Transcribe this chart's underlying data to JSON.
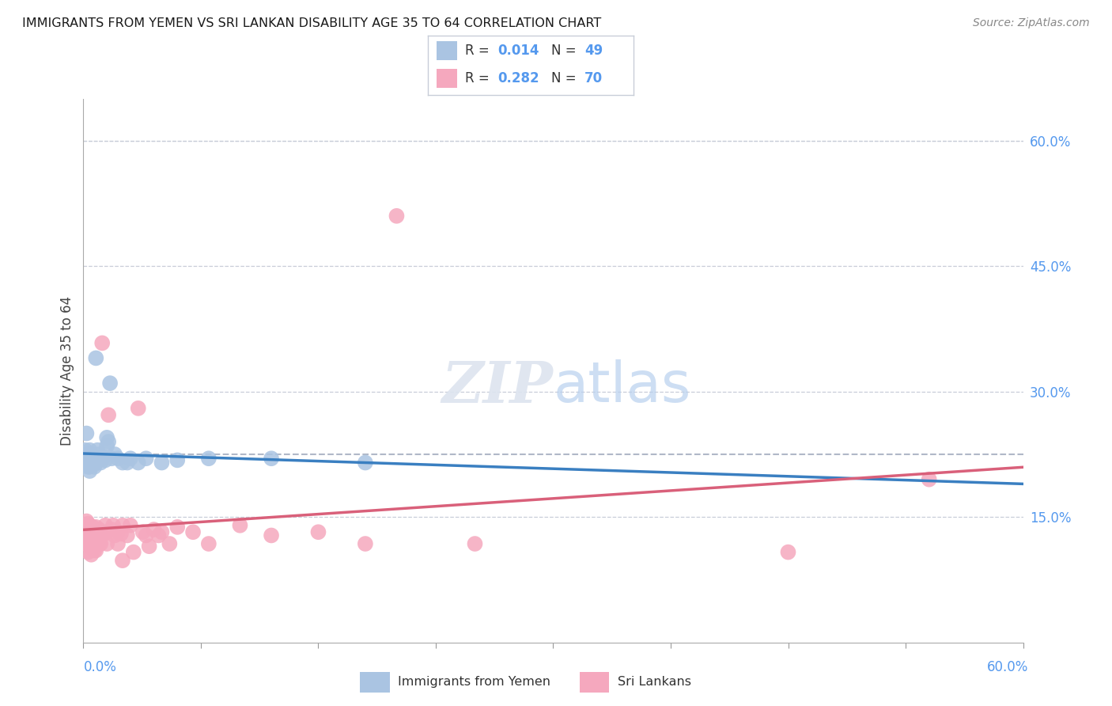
{
  "title": "IMMIGRANTS FROM YEMEN VS SRI LANKAN DISABILITY AGE 35 TO 64 CORRELATION CHART",
  "source": "Source: ZipAtlas.com",
  "ylabel": "Disability Age 35 to 64",
  "right_yticks": [
    0.15,
    0.3,
    0.45,
    0.6
  ],
  "right_yticklabels": [
    "15.0%",
    "30.0%",
    "45.0%",
    "60.0%"
  ],
  "xlim": [
    0.0,
    0.6
  ],
  "ylim": [
    0.0,
    0.65
  ],
  "yemen_R": 0.014,
  "yemen_N": 49,
  "srilanka_R": 0.282,
  "srilanka_N": 70,
  "yemen_color": "#aac4e2",
  "srilanka_color": "#f5a8be",
  "yemen_line_color": "#3a7fc1",
  "srilanka_line_color": "#d9607a",
  "dashed_line_color": "#b0b8c8",
  "grid_color": "#c8cdd8",
  "title_color": "#1a1a1a",
  "right_axis_color": "#5599ee",
  "background_color": "#ffffff",
  "legend_border_color": "#c8cdd8",
  "yemen_scatter_x": [
    0.001,
    0.001,
    0.002,
    0.002,
    0.002,
    0.003,
    0.003,
    0.003,
    0.004,
    0.004,
    0.004,
    0.004,
    0.005,
    0.005,
    0.005,
    0.006,
    0.006,
    0.006,
    0.007,
    0.007,
    0.007,
    0.008,
    0.008,
    0.009,
    0.009,
    0.01,
    0.01,
    0.011,
    0.011,
    0.012,
    0.013,
    0.014,
    0.015,
    0.015,
    0.016,
    0.017,
    0.018,
    0.02,
    0.022,
    0.025,
    0.028,
    0.03,
    0.035,
    0.04,
    0.05,
    0.06,
    0.08,
    0.12,
    0.18
  ],
  "yemen_scatter_y": [
    0.23,
    0.215,
    0.25,
    0.22,
    0.215,
    0.225,
    0.215,
    0.21,
    0.23,
    0.225,
    0.21,
    0.205,
    0.225,
    0.218,
    0.212,
    0.222,
    0.215,
    0.215,
    0.215,
    0.213,
    0.21,
    0.34,
    0.22,
    0.23,
    0.22,
    0.225,
    0.218,
    0.22,
    0.215,
    0.22,
    0.222,
    0.218,
    0.245,
    0.235,
    0.24,
    0.31,
    0.22,
    0.225,
    0.22,
    0.215,
    0.215,
    0.22,
    0.215,
    0.22,
    0.215,
    0.218,
    0.22,
    0.22,
    0.215
  ],
  "srilanka_scatter_x": [
    0.001,
    0.001,
    0.001,
    0.002,
    0.002,
    0.002,
    0.002,
    0.003,
    0.003,
    0.003,
    0.003,
    0.004,
    0.004,
    0.004,
    0.005,
    0.005,
    0.005,
    0.005,
    0.006,
    0.006,
    0.006,
    0.007,
    0.007,
    0.007,
    0.008,
    0.008,
    0.008,
    0.009,
    0.009,
    0.01,
    0.01,
    0.011,
    0.011,
    0.012,
    0.012,
    0.013,
    0.014,
    0.015,
    0.015,
    0.016,
    0.018,
    0.019,
    0.02,
    0.022,
    0.022,
    0.024,
    0.025,
    0.025,
    0.028,
    0.03,
    0.032,
    0.035,
    0.038,
    0.04,
    0.042,
    0.045,
    0.048,
    0.05,
    0.055,
    0.06,
    0.07,
    0.08,
    0.1,
    0.12,
    0.15,
    0.18,
    0.2,
    0.25,
    0.45,
    0.54
  ],
  "srilanka_scatter_y": [
    0.14,
    0.13,
    0.12,
    0.145,
    0.135,
    0.128,
    0.118,
    0.142,
    0.13,
    0.118,
    0.108,
    0.14,
    0.128,
    0.115,
    0.135,
    0.125,
    0.115,
    0.105,
    0.138,
    0.122,
    0.112,
    0.135,
    0.12,
    0.11,
    0.138,
    0.122,
    0.11,
    0.132,
    0.118,
    0.135,
    0.118,
    0.132,
    0.118,
    0.358,
    0.128,
    0.13,
    0.14,
    0.132,
    0.118,
    0.272,
    0.135,
    0.14,
    0.128,
    0.132,
    0.118,
    0.13,
    0.14,
    0.098,
    0.128,
    0.14,
    0.108,
    0.28,
    0.132,
    0.128,
    0.115,
    0.135,
    0.128,
    0.132,
    0.118,
    0.138,
    0.132,
    0.118,
    0.14,
    0.128,
    0.132,
    0.118,
    0.51,
    0.118,
    0.108,
    0.195
  ]
}
